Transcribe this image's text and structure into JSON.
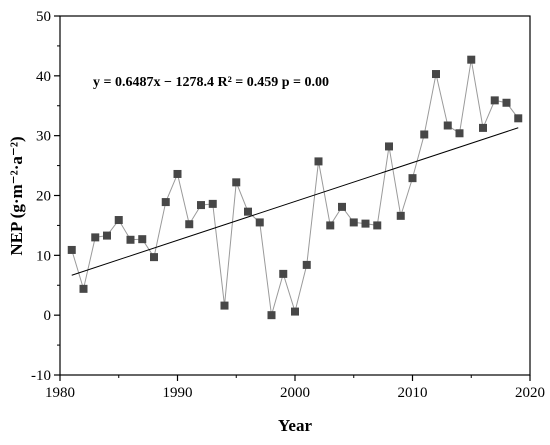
{
  "colors": {
    "marker": "#474747",
    "series_line": "#9a9a9a",
    "trend_line": "#000000",
    "axis": "#000000",
    "background": "#ffffff"
  },
  "chart_data": {
    "type": "line",
    "xlabel": "Year",
    "ylabel": "NEP (g·m⁻²·a⁻²)",
    "xlim": [
      1980,
      2020
    ],
    "ylim": [
      -10,
      50
    ],
    "x_ticks": [
      1980,
      1990,
      2000,
      2010,
      2020
    ],
    "y_ticks": [
      -10,
      0,
      10,
      20,
      30,
      40,
      50
    ],
    "grid": false,
    "annotation": "y = 0.6487x − 1278.4 R² = 0.459 p = 0.00",
    "series": [
      {
        "marker": "square",
        "x": [
          1981,
          1982,
          1983,
          1984,
          1985,
          1986,
          1987,
          1988,
          1989,
          1990,
          1991,
          1992,
          1993,
          1994,
          1995,
          1996,
          1997,
          1998,
          1999,
          2000,
          2001,
          2002,
          2003,
          2004,
          2005,
          2006,
          2007,
          2008,
          2009,
          2010,
          2011,
          2012,
          2013,
          2014,
          2015,
          2016,
          2017,
          2018,
          2019
        ],
        "y": [
          10.9,
          4.4,
          13.0,
          13.3,
          15.9,
          12.6,
          12.7,
          9.7,
          18.9,
          23.6,
          15.2,
          18.4,
          18.6,
          1.6,
          22.2,
          17.3,
          15.5,
          0.0,
          6.9,
          0.6,
          8.4,
          25.7,
          15.0,
          18.1,
          15.5,
          15.3,
          15.0,
          28.2,
          16.6,
          22.9,
          30.2,
          40.3,
          31.7,
          30.4,
          42.7,
          31.3,
          35.9,
          35.5,
          32.9
        ]
      }
    ],
    "trend": {
      "slope": 0.6487,
      "intercept": -1278.4,
      "x_range": [
        1981,
        2019
      ]
    }
  }
}
